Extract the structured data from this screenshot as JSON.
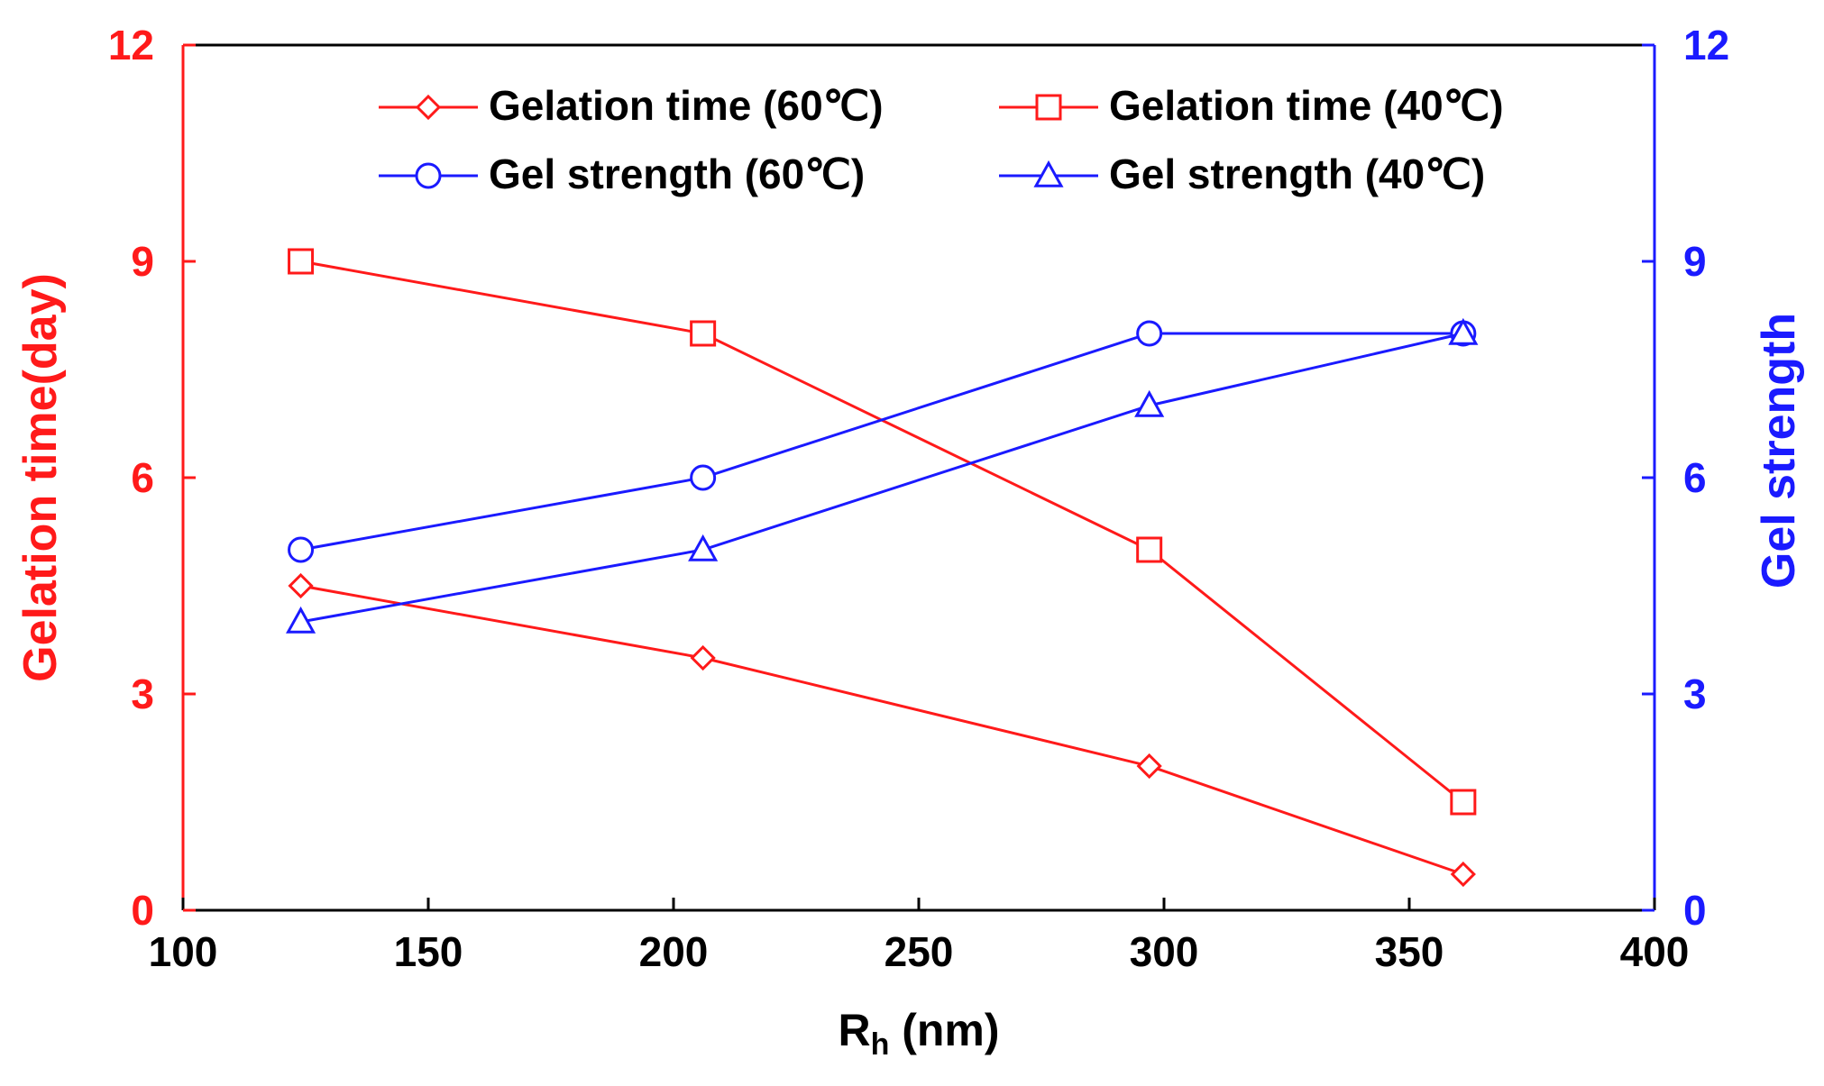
{
  "chart_data": {
    "type": "line",
    "x_axis": {
      "label_main": "R",
      "label_sub": "h",
      "label_unit": " (nm)",
      "lim": [
        100,
        400
      ],
      "ticks": [
        100,
        150,
        200,
        250,
        300,
        350,
        400
      ]
    },
    "y_left": {
      "label": "Gelation time(day)",
      "lim": [
        0,
        12
      ],
      "ticks": [
        0,
        3,
        6,
        9,
        12
      ],
      "color": "#ff1a1a"
    },
    "y_right": {
      "label": "Gel strength",
      "lim": [
        0,
        12
      ],
      "ticks": [
        0,
        3,
        6,
        9,
        12
      ],
      "color": "#1a1aff"
    },
    "grid": false,
    "legend_position": "top",
    "series": [
      {
        "name": "Gelation time (60℃)",
        "axis": "left",
        "marker": "diamond",
        "color": "#ff1a1a",
        "x": [
          124,
          206,
          297,
          361
        ],
        "values": [
          4.5,
          3.5,
          2.0,
          0.5
        ]
      },
      {
        "name": "Gelation time (40℃)",
        "axis": "left",
        "marker": "square",
        "color": "#ff1a1a",
        "x": [
          124,
          206,
          297,
          361
        ],
        "values": [
          9.0,
          8.0,
          5.0,
          1.5
        ]
      },
      {
        "name": "Gel strength (60℃)",
        "axis": "right",
        "marker": "circle",
        "color": "#1a1aff",
        "x": [
          124,
          206,
          297,
          361
        ],
        "values": [
          5,
          6,
          8,
          8
        ]
      },
      {
        "name": "Gel strength (40℃)",
        "axis": "right",
        "marker": "triangle",
        "color": "#1a1aff",
        "x": [
          124,
          206,
          297,
          361
        ],
        "values": [
          4,
          5,
          7,
          8
        ]
      }
    ]
  }
}
